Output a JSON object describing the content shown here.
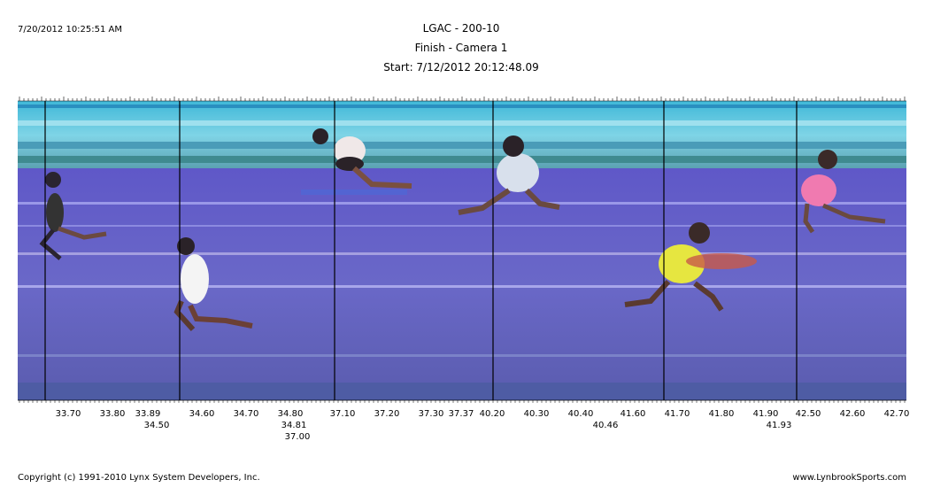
{
  "header": {
    "timestamp": "7/20/2012 10:25:51 AM",
    "title": "LGAC - 200-10",
    "subtitle": "Finish - Camera 1",
    "start": "Start: 7/12/2012 20:12:48.09"
  },
  "time_labels": {
    "row1": [
      "33.70",
      "33.80",
      "33.89",
      "34.60",
      "34.70",
      "34.80",
      "37.10",
      "37.20",
      "37.30",
      "37.37",
      "40.20",
      "40.30",
      "40.40",
      "41.60",
      "41.70",
      "41.80",
      "41.90",
      "42.50",
      "42.60",
      "42.70"
    ],
    "row2": [
      "34.50",
      "34.81",
      "40.46",
      "41.93"
    ],
    "row3": [
      "37.00"
    ]
  },
  "footer": {
    "copyright": "Copyright (c) 1991-2010 Lynx System Developers, Inc.",
    "url": "www.LynbrookSports.com"
  }
}
